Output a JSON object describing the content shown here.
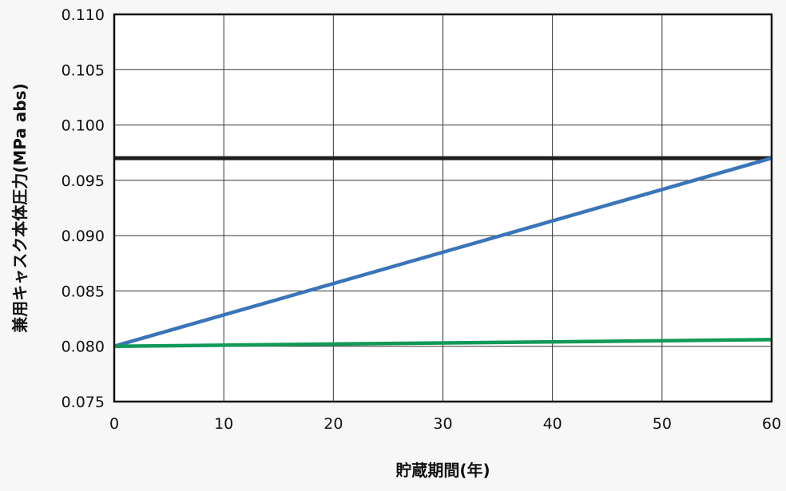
{
  "chart_data": {
    "type": "line",
    "xlabel": "貯蔵期間(年)",
    "ylabel": "兼用キャスク本体圧力(MPa abs)",
    "xlim": [
      0,
      60
    ],
    "ylim": [
      0.075,
      0.11
    ],
    "x_ticks": [
      "0",
      "10",
      "20",
      "30",
      "40",
      "50",
      "60"
    ],
    "y_ticks": [
      "0.075",
      "0.080",
      "0.085",
      "0.090",
      "0.095",
      "0.100",
      "0.105",
      "0.110"
    ],
    "grid": true,
    "series": [
      {
        "color": "#1e1e1e",
        "x": [
          0,
          60
        ],
        "y": [
          0.097,
          0.097
        ]
      },
      {
        "color": "#3b74b9",
        "x": [
          0,
          60
        ],
        "y": [
          0.08,
          0.097
        ]
      },
      {
        "color": "#119a57",
        "x": [
          0,
          60
        ],
        "y": [
          0.08,
          0.0806
        ]
      }
    ]
  }
}
